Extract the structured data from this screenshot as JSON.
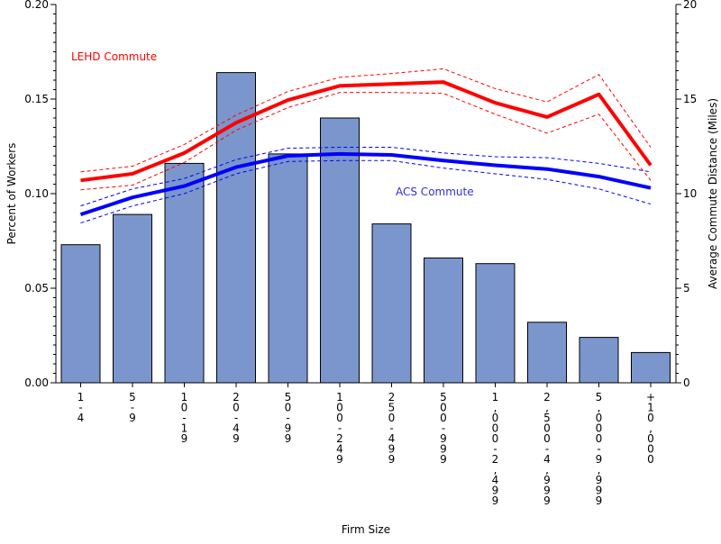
{
  "chart_data": {
    "type": "bar",
    "title": "",
    "xlabel": "Firm Size",
    "ylabel": "Percent of Workers",
    "y2label": "Average Commute Distance (Miles)",
    "ylim": [
      0,
      0.2
    ],
    "y2lim": [
      0,
      20
    ],
    "yticks": [
      "0.00",
      "0.05",
      "0.10",
      "0.15",
      "0.20"
    ],
    "y2ticks": [
      "0",
      "5",
      "10",
      "15",
      "20"
    ],
    "grid": false,
    "categories": [
      "1-4",
      "5-9",
      "10-19",
      "20-49",
      "50-99",
      "100-249",
      "250-499",
      "500-999",
      "1,000-2,499",
      "2,500-4,999",
      "5,000-9,999",
      "+10,000"
    ],
    "bars": {
      "values": [
        0.073,
        0.089,
        0.116,
        0.164,
        0.121,
        0.14,
        0.084,
        0.066,
        0.063,
        0.032,
        0.024,
        0.016
      ],
      "color": "#7b96cc"
    },
    "series": [
      {
        "name": "LEHD Commute",
        "axis": "right",
        "color": "#ff0000",
        "values": [
          10.7,
          11.05,
          12.15,
          13.75,
          14.95,
          15.7,
          15.8,
          15.9,
          14.8,
          14.05,
          15.25,
          11.5
        ],
        "upper": [
          11.15,
          11.45,
          12.6,
          14.15,
          15.4,
          16.15,
          16.35,
          16.6,
          15.55,
          14.85,
          16.3,
          12.45
        ],
        "lower": [
          10.2,
          10.45,
          11.65,
          13.35,
          14.55,
          15.35,
          15.35,
          15.3,
          14.2,
          13.2,
          14.2,
          10.7
        ]
      },
      {
        "name": "ACS Commute",
        "axis": "right",
        "color": "#0000ff",
        "values": [
          8.9,
          9.8,
          10.4,
          11.4,
          12.0,
          12.1,
          12.05,
          11.75,
          11.5,
          11.3,
          10.9,
          10.3
        ],
        "upper": [
          9.35,
          10.25,
          10.8,
          11.8,
          12.4,
          12.45,
          12.45,
          12.15,
          11.95,
          11.9,
          11.6,
          11.15
        ],
        "lower": [
          8.45,
          9.35,
          10.0,
          11.05,
          11.7,
          11.75,
          11.75,
          11.35,
          11.05,
          10.75,
          10.25,
          9.45
        ]
      }
    ]
  }
}
